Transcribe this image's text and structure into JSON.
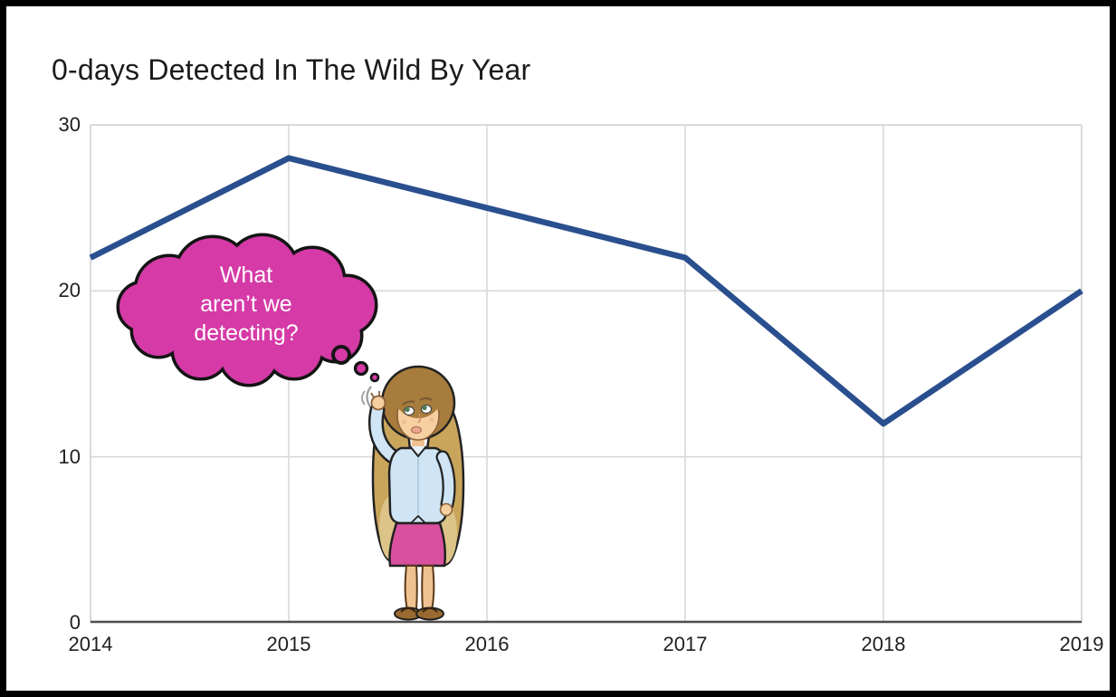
{
  "frame": {
    "border_color": "#000000",
    "background_color": "#ffffff"
  },
  "chart_data": {
    "type": "line",
    "title": "0-days Detected In The Wild By Year",
    "categories": [
      "2014",
      "2015",
      "2016",
      "2017",
      "2018",
      "2019"
    ],
    "series": [
      {
        "name": "0-days detected in the wild",
        "values": [
          22,
          28,
          25,
          22,
          12,
          20
        ],
        "color": "#2a4f8e"
      }
    ],
    "xlabel": "",
    "ylabel": "",
    "ylim": [
      0,
      30
    ],
    "yticks": [
      0,
      10,
      20,
      30
    ],
    "grid": true,
    "legend": "none",
    "gridline_color": "#d9d9d9",
    "axis_line_color": "#4d4d4d",
    "tick_label_color": "#1f1f1f",
    "title_color": "#1b1b1b"
  },
  "annotation": {
    "thought_bubble": {
      "lines": [
        "What",
        "aren’t we",
        "detecting?"
      ],
      "fill_color": "#d53aa7",
      "outline_color": "#141414",
      "text_color": "#ffffff"
    },
    "character": {
      "description": "puzzled woman scratching her head while looking up at thought bubble",
      "hair_top_color": "#a87c3c",
      "hair_ends_color": "#c9a55c",
      "skin_color": "#f6cfa0",
      "shirt_color": "#cfe4f4",
      "skirt_color": "#d9509e",
      "sandal_color": "#9a6a30"
    }
  }
}
